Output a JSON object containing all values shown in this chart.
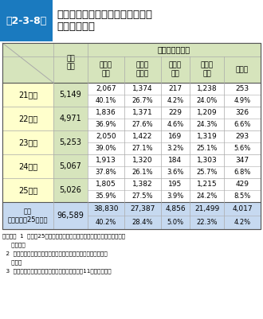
{
  "title_label": "第2-3-8表",
  "title_text": "各年度の消防職員委員会審議件数\n及び審議結果",
  "col_header1": "審議\n件数",
  "col_header2": "審議結果の区分",
  "sub_headers": [
    "実施が\n適当",
    "諸課題\nを検討",
    "実施は\n困難",
    "現行ど\nおり",
    "その他"
  ],
  "rows": [
    {
      "label": "21年度",
      "count": "5,149",
      "vals": [
        "2,067",
        "1,374",
        "217",
        "1,238",
        "253"
      ],
      "pcts": [
        "40.1%",
        "26.7%",
        "4.2%",
        "24.0%",
        "4.9%"
      ]
    },
    {
      "label": "22年度",
      "count": "4,971",
      "vals": [
        "1,836",
        "1,371",
        "229",
        "1,209",
        "326"
      ],
      "pcts": [
        "36.9%",
        "27.6%",
        "4.6%",
        "24.3%",
        "6.6%"
      ]
    },
    {
      "label": "23年度",
      "count": "5,253",
      "vals": [
        "2,050",
        "1,422",
        "169",
        "1,319",
        "293"
      ],
      "pcts": [
        "39.0%",
        "27.1%",
        "3.2%",
        "25.1%",
        "5.6%"
      ]
    },
    {
      "label": "24年度",
      "count": "5,067",
      "vals": [
        "1,913",
        "1,320",
        "184",
        "1,303",
        "347"
      ],
      "pcts": [
        "37.8%",
        "26.1%",
        "3.6%",
        "25.7%",
        "6.8%"
      ]
    },
    {
      "label": "25年度",
      "count": "5,026",
      "vals": [
        "1,805",
        "1,382",
        "195",
        "1,215",
        "429"
      ],
      "pcts": [
        "35.9%",
        "27.5%",
        "3.9%",
        "24.2%",
        "8.5%"
      ]
    }
  ],
  "summary_label": "累計\n（８年度〜25年度）",
  "summary_count": "96,589",
  "summary_vals": [
    "38,830",
    "27,387",
    "4,856",
    "21,499",
    "4,017"
  ],
  "summary_pcts": [
    "40.2%",
    "28.4%",
    "5.0%",
    "22.3%",
    "4.2%"
  ],
  "footnotes": [
    [
      "（備考）",
      "1",
      "「平成25年度における消防職員委員会の運営状況調査結果」"
    ],
    [
      "",
      "",
      "より作成"
    ],
    [
      "",
      "2",
      "小数点第二位を四捨五入のため、合計等が一致しない場合が"
    ],
    [
      "",
      "",
      "ある。"
    ],
    [
      "",
      "3",
      "審議結果のうち、「その他」については平成11年度から設定"
    ]
  ],
  "color_title_bg": "#1a7abf",
  "color_title_text": "#ffffff",
  "color_header_bg": "#d6e4bc",
  "color_year_bg": "#ffffcc",
  "color_summary_bg": "#c6d9f0",
  "color_white": "#ffffff",
  "color_border": "#aaaaaa",
  "color_border_dark": "#555555"
}
